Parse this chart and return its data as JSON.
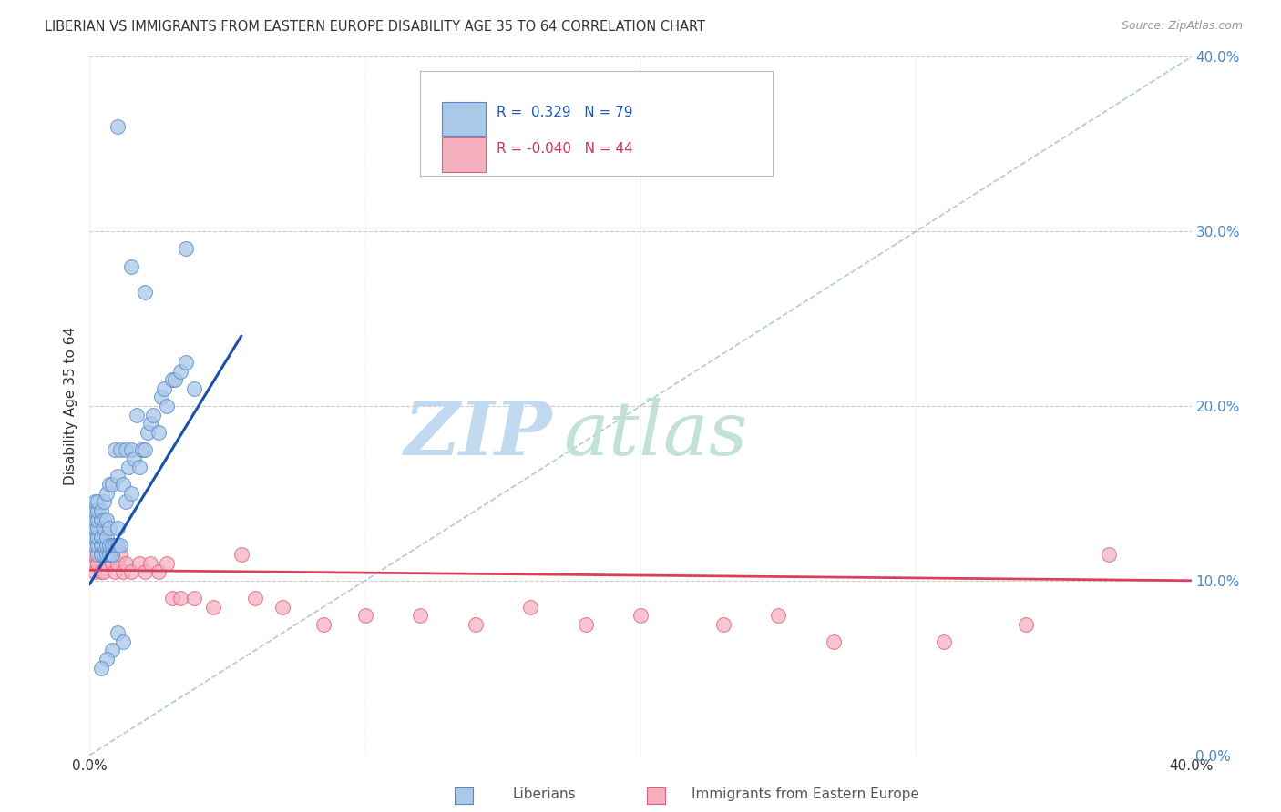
{
  "title": "LIBERIAN VS IMMIGRANTS FROM EASTERN EUROPE DISABILITY AGE 35 TO 64 CORRELATION CHART",
  "source": "Source: ZipAtlas.com",
  "ylabel": "Disability Age 35 to 64",
  "xlim": [
    0.0,
    0.4
  ],
  "ylim": [
    0.0,
    0.4
  ],
  "ytick_vals": [
    0.0,
    0.1,
    0.2,
    0.3,
    0.4
  ],
  "xtick_vals": [
    0.0,
    0.4
  ],
  "ytick_labels": [
    "0.0%",
    "10.0%",
    "20.0%",
    "30.0%",
    "40.0%"
  ],
  "xtick_labels": [
    "0.0%",
    "40.0%"
  ],
  "legend_text1": "R =  0.329   N = 79",
  "legend_text2": "R = -0.040   N = 44",
  "liberian_color": "#aac8e8",
  "eastern_europe_color": "#f5b0c0",
  "liberian_edge": "#5588cc",
  "eastern_europe_edge": "#e06080",
  "blue_line_color": "#1a4faa",
  "pink_line_color": "#d94060",
  "diagonal_color": "#b0c8e0",
  "watermark": "ZIPatlas",
  "watermark_color_zip": "#c0d8f0",
  "watermark_color_atlas": "#d0e8e0",
  "grid_color": "#cccccc",
  "ytick_color": "#4488cc",
  "xtick_color": "#333333",
  "lib_x": [
    0.001,
    0.001,
    0.001,
    0.001,
    0.002,
    0.002,
    0.002,
    0.002,
    0.002,
    0.002,
    0.003,
    0.003,
    0.003,
    0.003,
    0.003,
    0.003,
    0.003,
    0.004,
    0.004,
    0.004,
    0.004,
    0.004,
    0.005,
    0.005,
    0.005,
    0.005,
    0.005,
    0.005,
    0.006,
    0.006,
    0.006,
    0.006,
    0.006,
    0.007,
    0.007,
    0.007,
    0.007,
    0.008,
    0.008,
    0.008,
    0.009,
    0.009,
    0.01,
    0.01,
    0.01,
    0.011,
    0.011,
    0.012,
    0.013,
    0.013,
    0.014,
    0.015,
    0.015,
    0.016,
    0.017,
    0.018,
    0.019,
    0.02,
    0.021,
    0.022,
    0.023,
    0.025,
    0.026,
    0.027,
    0.028,
    0.03,
    0.031,
    0.033,
    0.035,
    0.038,
    0.01,
    0.015,
    0.02,
    0.035,
    0.01,
    0.012,
    0.008,
    0.006,
    0.004
  ],
  "lib_y": [
    0.125,
    0.13,
    0.135,
    0.14,
    0.12,
    0.125,
    0.13,
    0.135,
    0.14,
    0.145,
    0.115,
    0.12,
    0.125,
    0.13,
    0.135,
    0.14,
    0.145,
    0.115,
    0.12,
    0.125,
    0.135,
    0.14,
    0.115,
    0.12,
    0.125,
    0.13,
    0.135,
    0.145,
    0.115,
    0.12,
    0.125,
    0.135,
    0.15,
    0.115,
    0.12,
    0.13,
    0.155,
    0.115,
    0.12,
    0.155,
    0.12,
    0.175,
    0.12,
    0.13,
    0.16,
    0.12,
    0.175,
    0.155,
    0.145,
    0.175,
    0.165,
    0.15,
    0.175,
    0.17,
    0.195,
    0.165,
    0.175,
    0.175,
    0.185,
    0.19,
    0.195,
    0.185,
    0.205,
    0.21,
    0.2,
    0.215,
    0.215,
    0.22,
    0.225,
    0.21,
    0.36,
    0.28,
    0.265,
    0.29,
    0.07,
    0.065,
    0.06,
    0.055,
    0.05
  ],
  "east_x": [
    0.001,
    0.001,
    0.002,
    0.002,
    0.003,
    0.003,
    0.004,
    0.004,
    0.005,
    0.005,
    0.006,
    0.007,
    0.008,
    0.009,
    0.01,
    0.011,
    0.012,
    0.013,
    0.015,
    0.018,
    0.02,
    0.022,
    0.025,
    0.028,
    0.03,
    0.033,
    0.038,
    0.045,
    0.055,
    0.06,
    0.07,
    0.085,
    0.1,
    0.12,
    0.14,
    0.16,
    0.18,
    0.2,
    0.23,
    0.25,
    0.27,
    0.31,
    0.34,
    0.37
  ],
  "east_y": [
    0.11,
    0.115,
    0.105,
    0.115,
    0.11,
    0.12,
    0.105,
    0.115,
    0.105,
    0.12,
    0.11,
    0.115,
    0.11,
    0.105,
    0.11,
    0.115,
    0.105,
    0.11,
    0.105,
    0.11,
    0.105,
    0.11,
    0.105,
    0.11,
    0.09,
    0.09,
    0.09,
    0.085,
    0.115,
    0.09,
    0.085,
    0.075,
    0.08,
    0.08,
    0.075,
    0.085,
    0.075,
    0.08,
    0.075,
    0.08,
    0.065,
    0.065,
    0.075,
    0.115
  ],
  "blue_line_x0": 0.0,
  "blue_line_y0": 0.098,
  "blue_line_x1": 0.055,
  "blue_line_y1": 0.24,
  "pink_line_x0": 0.0,
  "pink_line_y0": 0.106,
  "pink_line_x1": 0.4,
  "pink_line_y1": 0.1
}
